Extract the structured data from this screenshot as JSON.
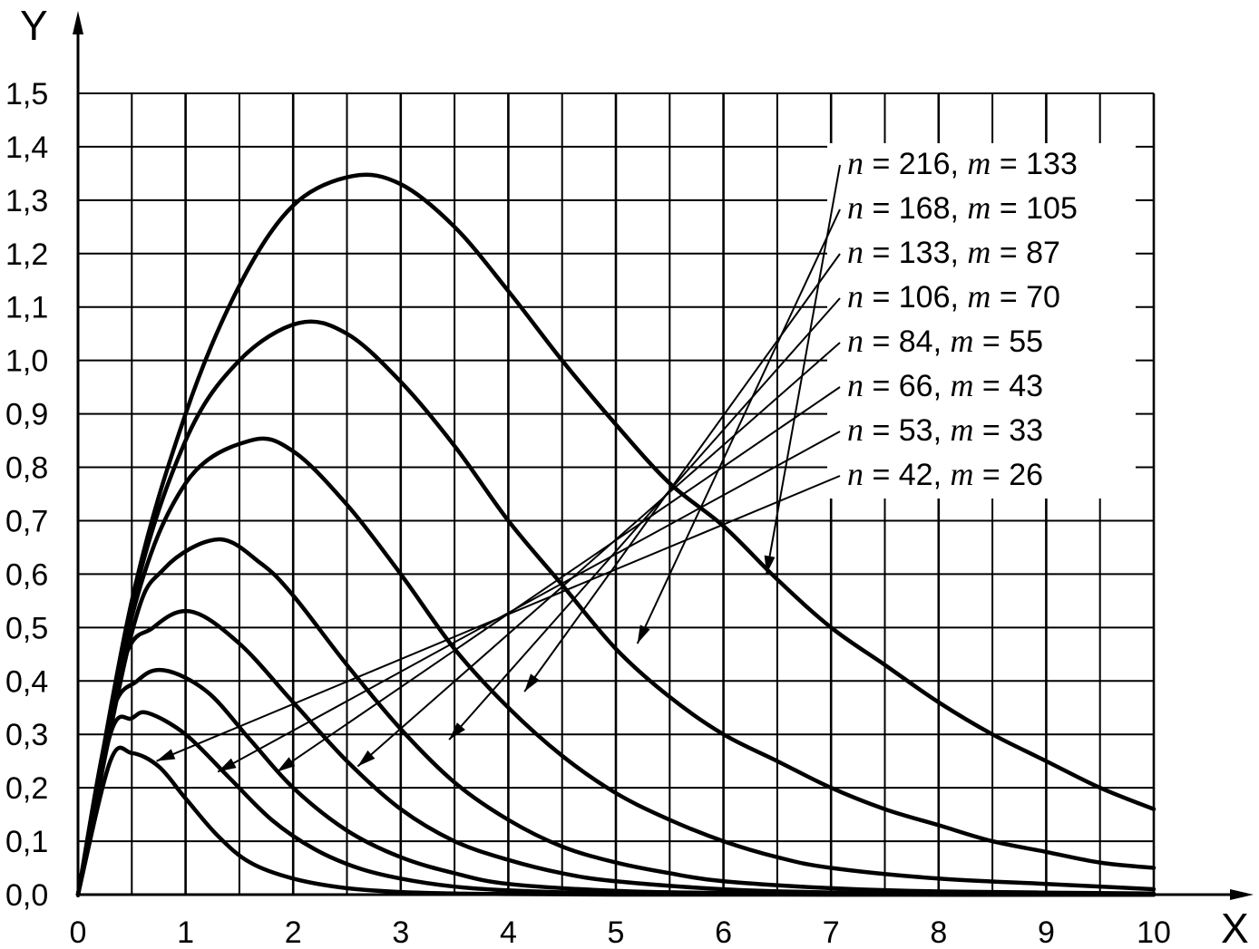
{
  "chart_data": {
    "type": "line",
    "xlabel": "X",
    "ylabel": "Y",
    "xlim": [
      0,
      10
    ],
    "ylim": [
      0,
      1.5
    ],
    "grid": true,
    "legend_placement": "top-right",
    "x_ticks": [
      "0",
      "1",
      "2",
      "3",
      "4",
      "5",
      "6",
      "7",
      "8",
      "9",
      "10"
    ],
    "y_ticks": [
      "0,0",
      "0,1",
      "0,2",
      "0,3",
      "0,4",
      "0,5",
      "0,6",
      "0,7",
      "0,8",
      "0,9",
      "1,0",
      "1,1",
      "1,2",
      "1,3",
      "1,4",
      "1,5"
    ],
    "series": [
      {
        "name": "n = 216, m = 133",
        "n": "216",
        "m": "133",
        "x": [
          0,
          0.5,
          1,
          1.5,
          2,
          2.55,
          3,
          3.5,
          4,
          4.5,
          5,
          5.5,
          6,
          6.5,
          7,
          7.5,
          8,
          8.5,
          9,
          9.5,
          10
        ],
        "y": [
          0,
          0.55,
          0.9,
          1.14,
          1.29,
          1.345,
          1.33,
          1.25,
          1.13,
          1.0,
          0.88,
          0.77,
          0.69,
          0.59,
          0.5,
          0.43,
          0.36,
          0.3,
          0.25,
          0.2,
          0.16
        ]
      },
      {
        "name": "n = 168, m = 105",
        "n": "168",
        "m": "105",
        "x": [
          0,
          0.5,
          1,
          1.5,
          2.05,
          2.5,
          3,
          3.5,
          4,
          4.5,
          5,
          5.5,
          6,
          6.5,
          7,
          7.5,
          8,
          8.5,
          9,
          9.5,
          10
        ],
        "y": [
          0,
          0.54,
          0.85,
          1.0,
          1.07,
          1.05,
          0.96,
          0.84,
          0.7,
          0.58,
          0.46,
          0.37,
          0.3,
          0.25,
          0.2,
          0.16,
          0.13,
          0.1,
          0.08,
          0.06,
          0.05
        ]
      },
      {
        "name": "n = 133, m = 87",
        "n": "133",
        "m": "87",
        "x": [
          0,
          0.5,
          1,
          1.6,
          2,
          2.5,
          3,
          3.5,
          4,
          4.5,
          5,
          5.5,
          6,
          6.5,
          7,
          8,
          9,
          10
        ],
        "y": [
          0,
          0.52,
          0.77,
          0.85,
          0.83,
          0.73,
          0.6,
          0.46,
          0.35,
          0.26,
          0.19,
          0.14,
          0.1,
          0.07,
          0.05,
          0.03,
          0.02,
          0.01
        ]
      },
      {
        "name": "n = 106, m = 70",
        "n": "106",
        "m": "70",
        "x": [
          0,
          0.5,
          0.8,
          1.3,
          1.7,
          2,
          2.5,
          3,
          3.5,
          4,
          4.5,
          5,
          5.5,
          6,
          7,
          8,
          10
        ],
        "y": [
          0,
          0.49,
          0.61,
          0.665,
          0.62,
          0.56,
          0.43,
          0.31,
          0.21,
          0.14,
          0.09,
          0.06,
          0.04,
          0.025,
          0.012,
          0.006,
          0.002
        ]
      },
      {
        "name": "n = 84, m = 55",
        "n": "84",
        "m": "55",
        "x": [
          0,
          0.4,
          0.7,
          1.05,
          1.5,
          2,
          2.5,
          3,
          3.5,
          4,
          4.5,
          5,
          6,
          7,
          8,
          10
        ],
        "y": [
          0,
          0.42,
          0.5,
          0.53,
          0.47,
          0.36,
          0.25,
          0.16,
          0.1,
          0.065,
          0.04,
          0.025,
          0.01,
          0.004,
          0.002,
          0.0
        ]
      },
      {
        "name": "n = 66, m = 43",
        "n": "66",
        "m": "43",
        "x": [
          0,
          0.3,
          0.55,
          0.8,
          1.2,
          1.6,
          2,
          2.5,
          3,
          3.5,
          4,
          5,
          6,
          8,
          10
        ],
        "y": [
          0,
          0.33,
          0.4,
          0.42,
          0.38,
          0.29,
          0.2,
          0.12,
          0.07,
          0.04,
          0.02,
          0.007,
          0.003,
          0.0,
          0.0
        ]
      },
      {
        "name": "n = 53, m = 33",
        "n": "53",
        "m": "33",
        "x": [
          0,
          0.3,
          0.5,
          0.65,
          1,
          1.4,
          1.8,
          2.2,
          2.6,
          3,
          3.5,
          4,
          5,
          7,
          10
        ],
        "y": [
          0,
          0.3,
          0.33,
          0.34,
          0.3,
          0.22,
          0.14,
          0.085,
          0.05,
          0.03,
          0.015,
          0.008,
          0.002,
          0.0,
          0.0
        ]
      },
      {
        "name": "n = 42, m = 26",
        "n": "42",
        "m": "26",
        "x": [
          0,
          0.3,
          0.5,
          0.75,
          1,
          1.3,
          1.6,
          2,
          2.5,
          3,
          3.5,
          4,
          5,
          7,
          10
        ],
        "y": [
          0,
          0.25,
          0.265,
          0.24,
          0.18,
          0.11,
          0.06,
          0.03,
          0.012,
          0.005,
          0.002,
          0.001,
          0.0,
          0.0,
          0.0
        ]
      }
    ],
    "leader_targets": [
      {
        "x": 6.4,
        "y": 0.6
      },
      {
        "x": 5.2,
        "y": 0.47
      },
      {
        "x": 4.15,
        "y": 0.38
      },
      {
        "x": 3.45,
        "y": 0.29
      },
      {
        "x": 2.6,
        "y": 0.24
      },
      {
        "x": 1.85,
        "y": 0.23
      },
      {
        "x": 1.3,
        "y": 0.23
      },
      {
        "x": 0.73,
        "y": 0.25
      }
    ]
  }
}
